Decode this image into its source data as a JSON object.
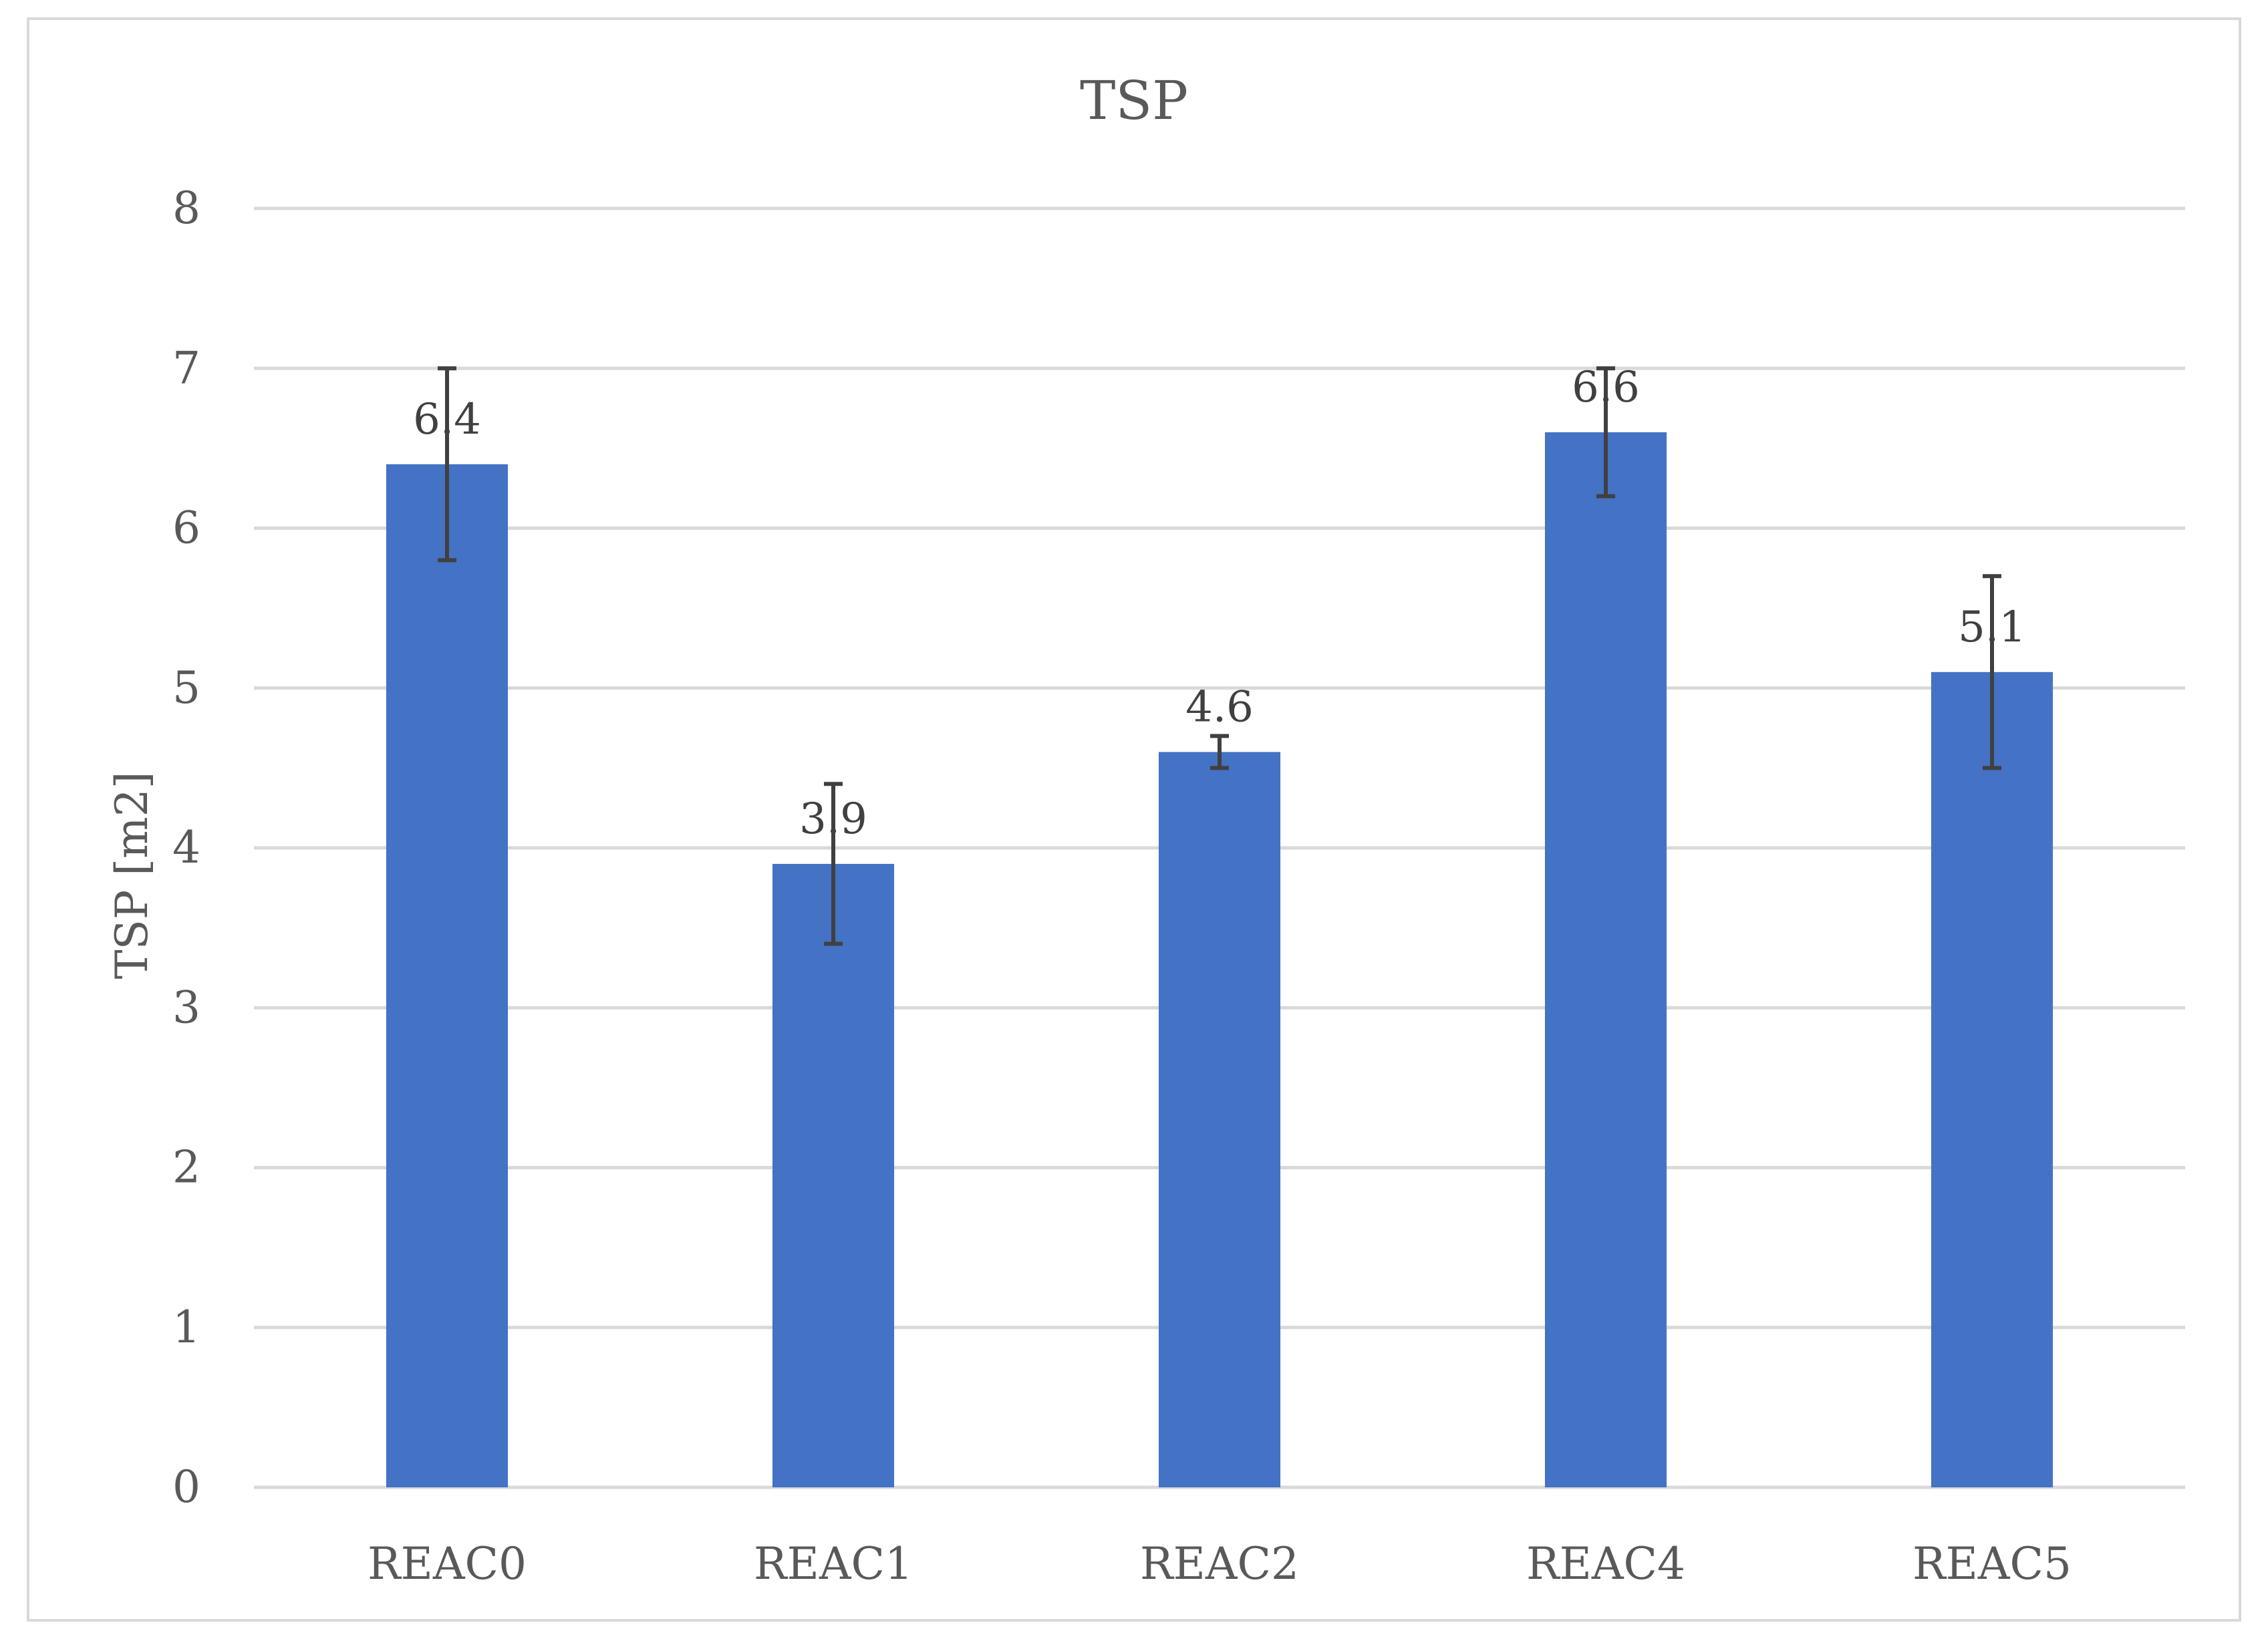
{
  "chart_data": {
    "type": "bar",
    "title": "TSP",
    "xlabel": "",
    "ylabel": "TSP [m2]",
    "categories": [
      "REAC0",
      "REAC1",
      "REAC2",
      "REAC4",
      "REAC5"
    ],
    "values": [
      6.4,
      3.9,
      4.6,
      6.6,
      5.1
    ],
    "data_labels": [
      "6.4",
      "3.9",
      "4.6",
      "6.6",
      "5.1"
    ],
    "error_low": [
      5.8,
      3.4,
      4.5,
      6.2,
      4.5
    ],
    "error_high": [
      7.0,
      4.4,
      4.7,
      7.0,
      5.7
    ],
    "ylim": [
      0,
      8
    ],
    "yticks": [
      "0",
      "1",
      "2",
      "3",
      "4",
      "5",
      "6",
      "7",
      "8"
    ],
    "grid": true,
    "legend": "none",
    "colors": {
      "bar": "#4472c4",
      "error_bar": "#404040",
      "grid": "#d9d9d9",
      "text": "#595959"
    }
  }
}
